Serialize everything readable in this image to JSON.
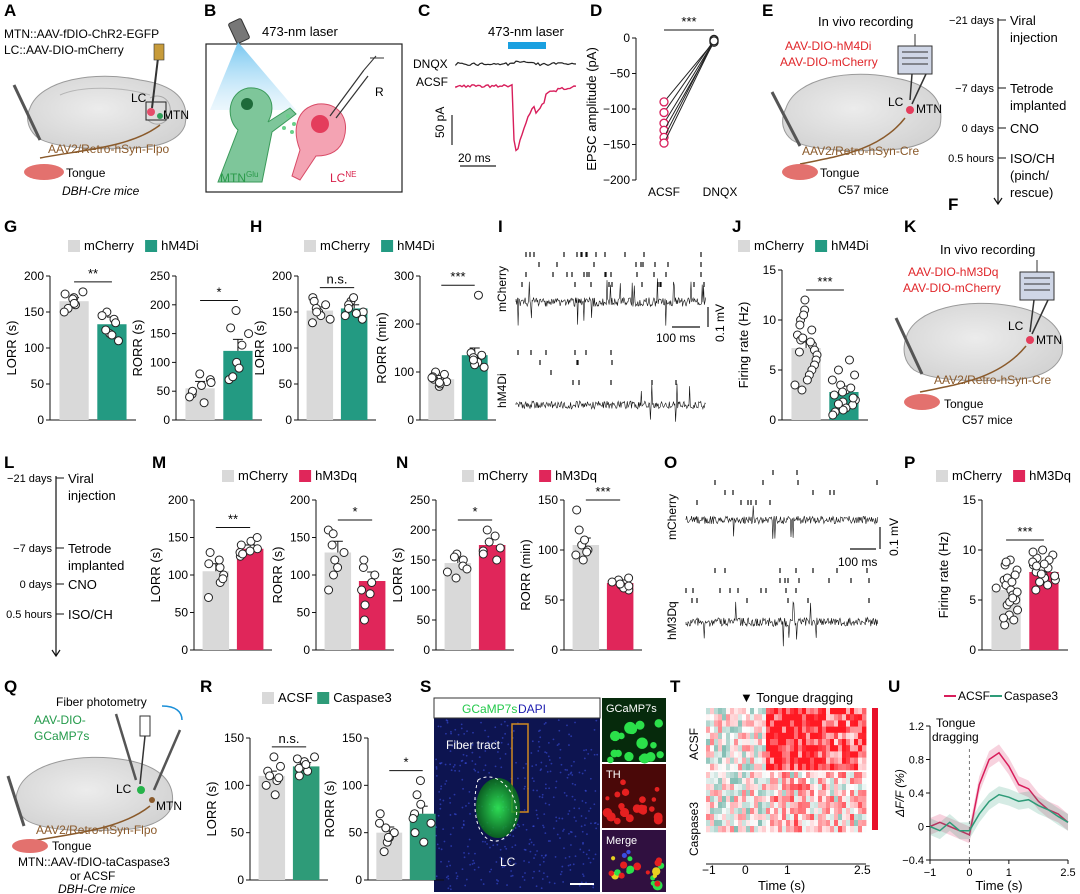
{
  "colors": {
    "mcherry": "#d9d9d9",
    "hm4di": "#239a82",
    "hm3dq": "#e0265a",
    "caspase": "#2e9b78",
    "acsf_trace": "#d81e5b",
    "gcamp": "#22c94a",
    "dapi": "#1c1cb0",
    "virus_text": "#e0262a",
    "tract": "#8a5a2b"
  },
  "panels": {
    "A": {
      "letter": "A",
      "line1": "MTN::AAV-fDIO-ChR2-EGFP",
      "line2": "LC::AAV-DIO-mCherry",
      "lc": "LC",
      "mtn": "MTN",
      "tract": "AAV2/Retro-hSyn-Flpo",
      "tongue": "Tongue",
      "mice": "DBH-Cre mice"
    },
    "B": {
      "letter": "B",
      "laser": "473-nm laser",
      "r": "R",
      "mtn": "MTN",
      "mtn_sup": "Glu",
      "lc": "LC",
      "lc_sup": "NE"
    },
    "C": {
      "letter": "C",
      "laser": "473-nm laser",
      "dnqx": "DNQX",
      "acsf": "ACSF",
      "ybar": "50 pA",
      "xbar": "20 ms"
    },
    "D": {
      "letter": "D",
      "stars": "***",
      "ylabel": "EPSC amplitude (pA)"
    },
    "E": {
      "letter": "E",
      "recording": "In vivo recording",
      "virus1": "AAV-DIO-hM4Di",
      "virus2": "AAV-DIO-mCherry",
      "lc": "LC",
      "mtn": "MTN",
      "tract": "AAV2/Retro-hSyn-Cre",
      "tongue": "Tongue",
      "mice": "C57 mice"
    },
    "F": {
      "letter": "F"
    },
    "G": {
      "letter": "G"
    },
    "H": {
      "letter": "H"
    },
    "I": {
      "letter": "I",
      "top": "mCherry",
      "bottom": "hM4Di",
      "xbar": "100 ms",
      "ybar": "0.1 mV"
    },
    "J": {
      "letter": "J"
    },
    "K": {
      "letter": "K",
      "recording": "In vivo recording",
      "virus1": "AAV-DIO-hM3Dq",
      "virus2": "AAV-DIO-mCherry",
      "lc": "LC",
      "mtn": "MTN",
      "tract": "AAV2/Retro-hSyn-Cre",
      "tongue": "Tongue",
      "mice": "C57 mice"
    },
    "L": {
      "letter": "L"
    },
    "M": {
      "letter": "M"
    },
    "N": {
      "letter": "N"
    },
    "O": {
      "letter": "O",
      "top": "mCherry",
      "bottom": "hM3Dq",
      "xbar": "100 ms",
      "ybar": "0.1 mV"
    },
    "P": {
      "letter": "P"
    },
    "Q": {
      "letter": "Q",
      "fiber": "Fiber photometry",
      "virus1": "AAV-DIO-",
      "virus2": "GCaMP7s",
      "lc": "LC",
      "mtn": "MTN",
      "tract": "AAV2/Retro-hSyn-Flpo",
      "tongue": "Tongue",
      "line1": "MTN::AAV-fDIO-taCaspase3",
      "line2": "or ACSF",
      "mice": "DBH-Cre mice"
    },
    "R": {
      "letter": "R"
    },
    "S": {
      "letter": "S",
      "gcamp": "GCaMP7s",
      "dapi": "DAPI",
      "fiber": "Fiber tract",
      "lc": "LC",
      "inset1": "GCaMP7s",
      "inset2": "TH",
      "inset3": "Merge"
    },
    "T": {
      "letter": "T",
      "event": "▼ Tongue dragging",
      "row1": "ACSF",
      "row2": "Caspase3",
      "xlabel": "Time (s)",
      "xticks": [
        "−1",
        "0",
        "1",
        "2.5"
      ]
    },
    "U": {
      "letter": "U",
      "event1": "Tongue",
      "event2": "dragging",
      "ylabel": "ΔF/F (%)",
      "xlabel": "Time (s)"
    }
  },
  "timelines": {
    "F": [
      {
        "time": "−21 days",
        "lines": [
          "Viral",
          "injection"
        ]
      },
      {
        "time": "−7 days",
        "lines": [
          "Tetrode",
          "implanted"
        ]
      },
      {
        "time": "0 days",
        "lines": [
          "CNO"
        ]
      },
      {
        "time": "0.5 hours",
        "lines": [
          "ISO/CH",
          "(pinch/",
          "rescue)"
        ]
      }
    ],
    "L": [
      {
        "time": "−21 days",
        "lines": [
          "Viral",
          "injection"
        ]
      },
      {
        "time": "−7 days",
        "lines": [
          "Tetrode",
          "implanted"
        ]
      },
      {
        "time": "0 days",
        "lines": [
          "CNO"
        ]
      },
      {
        "time": "0.5 hours",
        "lines": [
          "ISO/CH"
        ]
      }
    ]
  },
  "chart_data": [
    {
      "id": "D",
      "type": "scatter",
      "categories": [
        "ACSF",
        "DNQX"
      ],
      "ylabel": "EPSC amplitude (pA)",
      "ylim": [
        -200,
        0
      ],
      "yticks": [
        0,
        -50,
        -100,
        -150,
        -200
      ],
      "stars": "***",
      "pairs": [
        [
          -90,
          -5
        ],
        [
          -105,
          -3
        ],
        [
          -120,
          -4
        ],
        [
          -130,
          -6
        ],
        [
          -140,
          -2
        ],
        [
          -148,
          -4
        ]
      ]
    },
    {
      "id": "G1",
      "type": "bar",
      "legend": [
        "mCherry",
        "hM4Di"
      ],
      "ylabel": "LORR (s)",
      "ylim": [
        0,
        200
      ],
      "yticks": [
        0,
        50,
        100,
        150,
        200
      ],
      "stars": "**",
      "values": [
        165,
        133
      ],
      "errors": [
        5,
        10
      ],
      "points": [
        [
          170,
          160,
          175,
          155,
          168,
          162,
          150,
          178
        ],
        [
          140,
          120,
          150,
          110,
          135,
          145,
          118,
          125
        ]
      ]
    },
    {
      "id": "G2",
      "type": "bar",
      "legend": [
        "mCherry",
        "hM4Di"
      ],
      "ylabel": "RORR (s)",
      "ylim": [
        0,
        250
      ],
      "yticks": [
        0,
        50,
        100,
        150,
        200,
        250
      ],
      "stars": "*",
      "values": [
        55,
        120
      ],
      "errors": [
        12,
        20
      ],
      "points": [
        [
          30,
          45,
          60,
          80,
          50,
          40,
          70,
          65
        ],
        [
          70,
          100,
          150,
          160,
          190,
          90,
          130,
          75
        ]
      ]
    },
    {
      "id": "H1",
      "type": "bar",
      "legend": [
        "mCherry",
        "hM4Di"
      ],
      "ylabel": "LORR (s)",
      "ylim": [
        0,
        200
      ],
      "yticks": [
        0,
        50,
        100,
        150,
        200
      ],
      "stars": "n.s.",
      "values": [
        152,
        155
      ],
      "errors": [
        5,
        5
      ],
      "points": [
        [
          170,
          140,
          150,
          165,
          145,
          155,
          135,
          160,
          150
        ],
        [
          165,
          145,
          150,
          160,
          140,
          170,
          155,
          148
        ]
      ]
    },
    {
      "id": "H2",
      "type": "bar",
      "legend": [
        "mCherry",
        "hM4Di"
      ],
      "ylabel": "RORR (min)",
      "ylim": [
        0,
        300
      ],
      "yticks": [
        0,
        100,
        200,
        300
      ],
      "stars": "***",
      "values": [
        85,
        135
      ],
      "errors": [
        8,
        15
      ],
      "points": [
        [
          70,
          80,
          95,
          85,
          100,
          75,
          90,
          88,
          78
        ],
        [
          260,
          120,
          110,
          140,
          130,
          115,
          125,
          135
        ]
      ]
    },
    {
      "id": "J",
      "type": "bar",
      "legend": [
        "mCherry",
        "hM4Di"
      ],
      "ylabel": "Firing rate (Hz)",
      "ylim": [
        0,
        15
      ],
      "yticks": [
        0,
        5,
        10,
        15
      ],
      "stars": "***",
      "values": [
        7.2,
        2.8
      ],
      "errors": [
        0.6,
        0.4
      ],
      "points": [
        [
          12,
          11,
          10,
          9.5,
          9,
          8.5,
          8,
          7.5,
          7,
          6.5,
          6,
          5.5,
          5,
          4.5,
          4,
          3.5,
          3,
          8.2,
          6.8,
          10.5,
          7.8
        ],
        [
          6,
          5,
          4.5,
          4,
          3.5,
          3,
          2.8,
          2.5,
          2,
          1.8,
          1.5,
          1.2,
          1,
          0.8,
          3.2,
          2.2,
          1.6,
          0.5
        ]
      ]
    },
    {
      "id": "M1",
      "type": "bar",
      "legend": [
        "mCherry",
        "hM3Dq"
      ],
      "ylabel": "LORR (s)",
      "ylim": [
        0,
        200
      ],
      "yticks": [
        0,
        50,
        100,
        150,
        200
      ],
      "stars": "**",
      "values": [
        105,
        135
      ],
      "errors": [
        10,
        5
      ],
      "points": [
        [
          70,
          90,
          110,
          120,
          100,
          130,
          95,
          115
        ],
        [
          125,
          140,
          130,
          145,
          150,
          135,
          128,
          132
        ]
      ]
    },
    {
      "id": "M2",
      "type": "bar",
      "legend": [
        "mCherry",
        "hM3Dq"
      ],
      "ylabel": "RORR (s)",
      "ylim": [
        0,
        200
      ],
      "yticks": [
        0,
        50,
        100,
        150,
        200
      ],
      "stars": "*",
      "values": [
        130,
        92
      ],
      "errors": [
        15,
        12
      ],
      "points": [
        [
          160,
          155,
          110,
          80,
          120,
          140,
          100,
          130
        ],
        [
          40,
          60,
          80,
          100,
          110,
          75,
          120,
          90
        ]
      ]
    },
    {
      "id": "N1",
      "type": "bar",
      "legend": [
        "mCherry",
        "hM3Dq"
      ],
      "ylabel": "LORR (s)",
      "ylim": [
        0,
        250
      ],
      "yticks": [
        0,
        50,
        100,
        150,
        200,
        250
      ],
      "stars": "*",
      "values": [
        145,
        175
      ],
      "errors": [
        8,
        10
      ],
      "points": [
        [
          120,
          130,
          150,
          160,
          140,
          155,
          135
        ],
        [
          150,
          190,
          200,
          180,
          165,
          170,
          160
        ]
      ]
    },
    {
      "id": "N2",
      "type": "bar",
      "legend": [
        "mCherry",
        "hM3Dq"
      ],
      "ylabel": "RORR (min)",
      "ylim": [
        0,
        150
      ],
      "yticks": [
        0,
        50,
        100,
        150
      ],
      "stars": "***",
      "values": [
        105,
        67
      ],
      "errors": [
        7,
        3
      ],
      "points": [
        [
          140,
          120,
          105,
          95,
          100,
          110,
          90,
          98
        ],
        [
          60,
          65,
          70,
          68,
          72,
          62,
          66,
          64
        ]
      ]
    },
    {
      "id": "P",
      "type": "bar",
      "legend": [
        "mCherry",
        "hM3Dq"
      ],
      "ylabel": "Firing rate (Hz)",
      "ylim": [
        0,
        15
      ],
      "yticks": [
        0,
        5,
        10,
        15
      ],
      "stars": "***",
      "values": [
        6.0,
        7.8
      ],
      "errors": [
        0.4,
        0.3
      ],
      "points": [
        [
          9,
          8.5,
          8,
          7.5,
          7,
          6.5,
          6,
          5.5,
          5,
          4.5,
          4,
          3.5,
          3,
          2.5,
          6.2,
          5.8,
          7.2,
          4.8,
          3.2,
          6.8,
          5.2,
          8.8
        ],
        [
          10,
          9.5,
          9,
          8.5,
          8,
          7.5,
          7,
          6.5,
          6,
          8.2,
          7.8,
          9.2,
          7.2,
          6.8,
          8.8,
          7.4,
          8.6,
          9.8,
          7.6,
          8.4
        ]
      ]
    },
    {
      "id": "R1",
      "type": "bar",
      "legend": [
        "ACSF",
        "Caspase3"
      ],
      "ylabel": "LORR (s)",
      "ylim": [
        0,
        150
      ],
      "yticks": [
        0,
        50,
        100,
        150
      ],
      "stars": "n.s.",
      "values": [
        110,
        120
      ],
      "errors": [
        5,
        4
      ],
      "points": [
        [
          90,
          100,
          105,
          115,
          120,
          130,
          110,
          108
        ],
        [
          110,
          120,
          125,
          130,
          115,
          128,
          118,
          122
        ]
      ]
    },
    {
      "id": "R2",
      "type": "bar",
      "legend": [
        "ACSF",
        "Caspase3"
      ],
      "ylabel": "RORR (s)",
      "ylim": [
        0,
        150
      ],
      "yticks": [
        0,
        50,
        100,
        150
      ],
      "stars": "*",
      "values": [
        50,
        70
      ],
      "errors": [
        6,
        8
      ],
      "points": [
        [
          30,
          40,
          45,
          55,
          60,
          70,
          50,
          45
        ],
        [
          40,
          60,
          70,
          80,
          90,
          105,
          65,
          50
        ]
      ]
    },
    {
      "id": "U",
      "type": "line",
      "ylabel": "ΔF/F (%)",
      "xlabel": "Time (s)",
      "xlim": [
        -1,
        2.5
      ],
      "ylim": [
        -0.4,
        1.2
      ],
      "xticks": [
        -1,
        0,
        1,
        2.5
      ],
      "yticks": [
        -0.4,
        0,
        0.4,
        0.8,
        1.2
      ],
      "x": [
        -1,
        -0.75,
        -0.5,
        -0.25,
        0,
        0.25,
        0.5,
        0.75,
        1,
        1.25,
        1.5,
        1.75,
        2,
        2.25,
        2.5
      ],
      "series": [
        {
          "name": "ACSF",
          "values": [
            0.0,
            0.05,
            0.0,
            -0.05,
            -0.1,
            0.5,
            0.8,
            0.88,
            0.72,
            0.5,
            0.45,
            0.3,
            0.2,
            0.15,
            0.05
          ]
        },
        {
          "name": "Caspase3",
          "values": [
            0.0,
            -0.05,
            0.05,
            -0.05,
            -0.05,
            0.15,
            0.3,
            0.38,
            0.35,
            0.3,
            0.32,
            0.25,
            0.2,
            0.12,
            0.05
          ]
        }
      ]
    }
  ]
}
